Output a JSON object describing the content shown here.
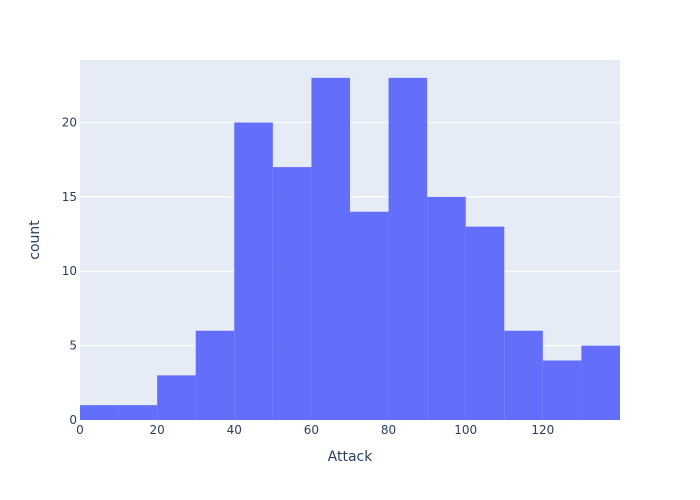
{
  "chart_data": {
    "type": "bar",
    "xlabel": "Attack",
    "ylabel": "count",
    "bins": [
      {
        "start": 0,
        "end": 10,
        "count": 1
      },
      {
        "start": 10,
        "end": 20,
        "count": 1
      },
      {
        "start": 20,
        "end": 30,
        "count": 3
      },
      {
        "start": 30,
        "end": 40,
        "count": 6
      },
      {
        "start": 40,
        "end": 50,
        "count": 20
      },
      {
        "start": 50,
        "end": 60,
        "count": 17
      },
      {
        "start": 60,
        "end": 70,
        "count": 23
      },
      {
        "start": 70,
        "end": 80,
        "count": 14
      },
      {
        "start": 80,
        "end": 90,
        "count": 23
      },
      {
        "start": 90,
        "end": 100,
        "count": 15
      },
      {
        "start": 100,
        "end": 110,
        "count": 13
      },
      {
        "start": 110,
        "end": 120,
        "count": 6
      },
      {
        "start": 120,
        "end": 130,
        "count": 4
      },
      {
        "start": 130,
        "end": 140,
        "count": 5
      }
    ],
    "xlim": [
      0,
      140
    ],
    "ylim": [
      0,
      24.2
    ],
    "xticks": [
      0,
      20,
      40,
      60,
      80,
      100,
      120
    ],
    "yticks": [
      0,
      5,
      10,
      15,
      20
    ],
    "grid": true,
    "colors": {
      "bar": "#636efa",
      "plot_bg": "#e5ecf6",
      "grid": "#ffffff",
      "text": "#2a3f5f"
    }
  }
}
